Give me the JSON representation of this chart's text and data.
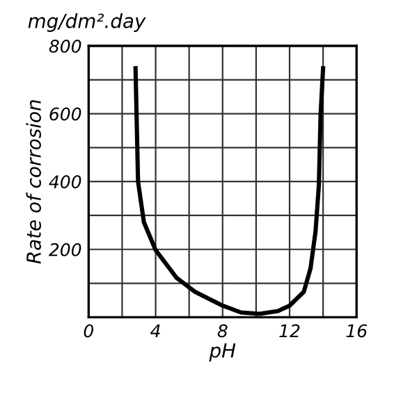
{
  "chart_data": {
    "type": "line",
    "xlabel": "pH",
    "ylabel": "Rate of corrosion",
    "annotations": [
      "mg/dm².day"
    ],
    "x": [
      2.8,
      2.95,
      3.3,
      4.0,
      5.25,
      6.35,
      8.0,
      9.1,
      10.2,
      11.3,
      12.0,
      12.85,
      13.25,
      13.55,
      13.75,
      13.85,
      14.0
    ],
    "series": [
      {
        "color": "#000000",
        "values": [
          734,
          400,
          280,
          198,
          116,
          75,
          34,
          14,
          10,
          18,
          34,
          75,
          144,
          253,
          390,
          595,
          734
        ]
      }
    ],
    "xlim": [
      0,
      16
    ],
    "ylim": [
      0,
      800
    ],
    "xticks": [
      0,
      {
        "value": 2,
        "label": null
      },
      4,
      {
        "value": 6,
        "label": null
      },
      8,
      {
        "value": 10,
        "label": null
      },
      12,
      {
        "value": 14,
        "label": null
      },
      16
    ],
    "yticks": [
      {
        "value": 0,
        "label": null
      },
      {
        "value": 100,
        "label": null
      },
      200,
      {
        "value": 300,
        "label": null
      },
      400,
      {
        "value": 500,
        "label": null
      },
      600,
      {
        "value": 700,
        "label": null
      },
      800
    ],
    "grid": true,
    "marker": "none",
    "line_style": "solid"
  }
}
